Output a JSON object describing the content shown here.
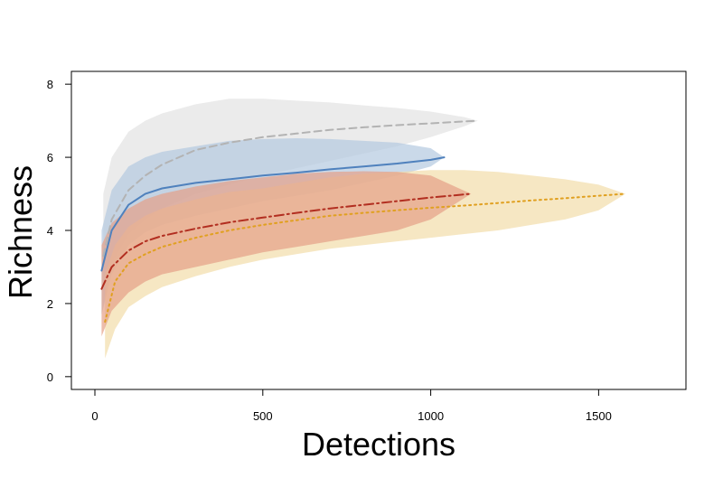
{
  "chart_data": {
    "type": "line",
    "title": "",
    "xlabel": "Detections",
    "ylabel": "Richness",
    "xlim": [
      -70,
      1760
    ],
    "ylim": [
      -0.35,
      8.35
    ],
    "x_ticks": [
      0,
      500,
      1000,
      1500
    ],
    "y_ticks": [
      0,
      2,
      4,
      6,
      8
    ],
    "x_tick_labels": [
      "0",
      "500",
      "1000",
      "1500"
    ],
    "y_tick_labels": [
      "0",
      "2",
      "4",
      "6",
      "8"
    ],
    "grid": false,
    "legend": "none",
    "series": [
      {
        "color": "#b3b3b3",
        "band_color": "#e3e3e3",
        "dash": "8,5",
        "x": [
          25,
          50,
          100,
          150,
          200,
          300,
          400,
          500,
          600,
          700,
          800,
          900,
          1000,
          1100,
          1140
        ],
        "y": [
          3.3,
          4.3,
          5.1,
          5.5,
          5.8,
          6.2,
          6.4,
          6.55,
          6.65,
          6.75,
          6.82,
          6.88,
          6.93,
          6.98,
          7.0
        ],
        "lower": [
          2.0,
          3.1,
          3.9,
          4.3,
          4.6,
          5.0,
          5.25,
          5.5,
          5.7,
          5.9,
          6.1,
          6.3,
          6.55,
          6.85,
          7.0
        ],
        "upper": [
          5.0,
          6.0,
          6.7,
          7.0,
          7.2,
          7.45,
          7.6,
          7.6,
          7.55,
          7.5,
          7.42,
          7.35,
          7.25,
          7.1,
          7.0
        ]
      },
      {
        "color": "#4f81bd",
        "band_color": "#b4c9e0",
        "dash": "",
        "x": [
          20,
          50,
          100,
          150,
          200,
          300,
          400,
          500,
          600,
          700,
          800,
          900,
          1000,
          1040
        ],
        "y": [
          2.9,
          4.0,
          4.7,
          5.0,
          5.15,
          5.3,
          5.4,
          5.5,
          5.58,
          5.67,
          5.75,
          5.83,
          5.93,
          6.0
        ],
        "lower": [
          1.7,
          2.8,
          3.6,
          3.95,
          4.15,
          4.4,
          4.6,
          4.8,
          4.95,
          5.1,
          5.3,
          5.5,
          5.75,
          6.0
        ],
        "upper": [
          4.0,
          5.1,
          5.75,
          6.0,
          6.15,
          6.3,
          6.45,
          6.5,
          6.52,
          6.5,
          6.45,
          6.4,
          6.25,
          6.0
        ]
      },
      {
        "color": "#e0a020",
        "band_color": "#f2ddaa",
        "dash": "2,4",
        "x": [
          30,
          60,
          100,
          150,
          200,
          300,
          400,
          500,
          600,
          700,
          800,
          900,
          1000,
          1100,
          1200,
          1300,
          1400,
          1500,
          1580
        ],
        "y": [
          1.5,
          2.6,
          3.1,
          3.35,
          3.55,
          3.8,
          4.0,
          4.15,
          4.28,
          4.4,
          4.48,
          4.55,
          4.62,
          4.68,
          4.75,
          4.82,
          4.88,
          4.95,
          5.0
        ],
        "lower": [
          0.5,
          1.3,
          1.9,
          2.2,
          2.45,
          2.75,
          3.0,
          3.2,
          3.35,
          3.5,
          3.6,
          3.7,
          3.8,
          3.9,
          4.0,
          4.15,
          4.3,
          4.55,
          5.0
        ],
        "upper": [
          2.8,
          3.6,
          4.1,
          4.4,
          4.6,
          4.85,
          5.05,
          5.15,
          5.3,
          5.45,
          5.55,
          5.6,
          5.65,
          5.65,
          5.6,
          5.5,
          5.4,
          5.25,
          5.0
        ]
      },
      {
        "color": "#b22e20",
        "band_color": "#e6a088",
        "dash": "10,4,2,4",
        "x": [
          20,
          50,
          100,
          150,
          200,
          300,
          400,
          500,
          600,
          700,
          800,
          900,
          1000,
          1120
        ],
        "y": [
          2.4,
          3.0,
          3.45,
          3.7,
          3.85,
          4.05,
          4.22,
          4.35,
          4.48,
          4.6,
          4.7,
          4.8,
          4.9,
          5.0
        ],
        "lower": [
          1.1,
          1.8,
          2.3,
          2.6,
          2.8,
          3.0,
          3.2,
          3.4,
          3.55,
          3.7,
          3.85,
          4.0,
          4.3,
          5.0
        ],
        "upper": [
          3.6,
          4.2,
          4.6,
          4.85,
          5.0,
          5.2,
          5.35,
          5.45,
          5.55,
          5.6,
          5.62,
          5.6,
          5.5,
          5.0
        ]
      }
    ]
  }
}
